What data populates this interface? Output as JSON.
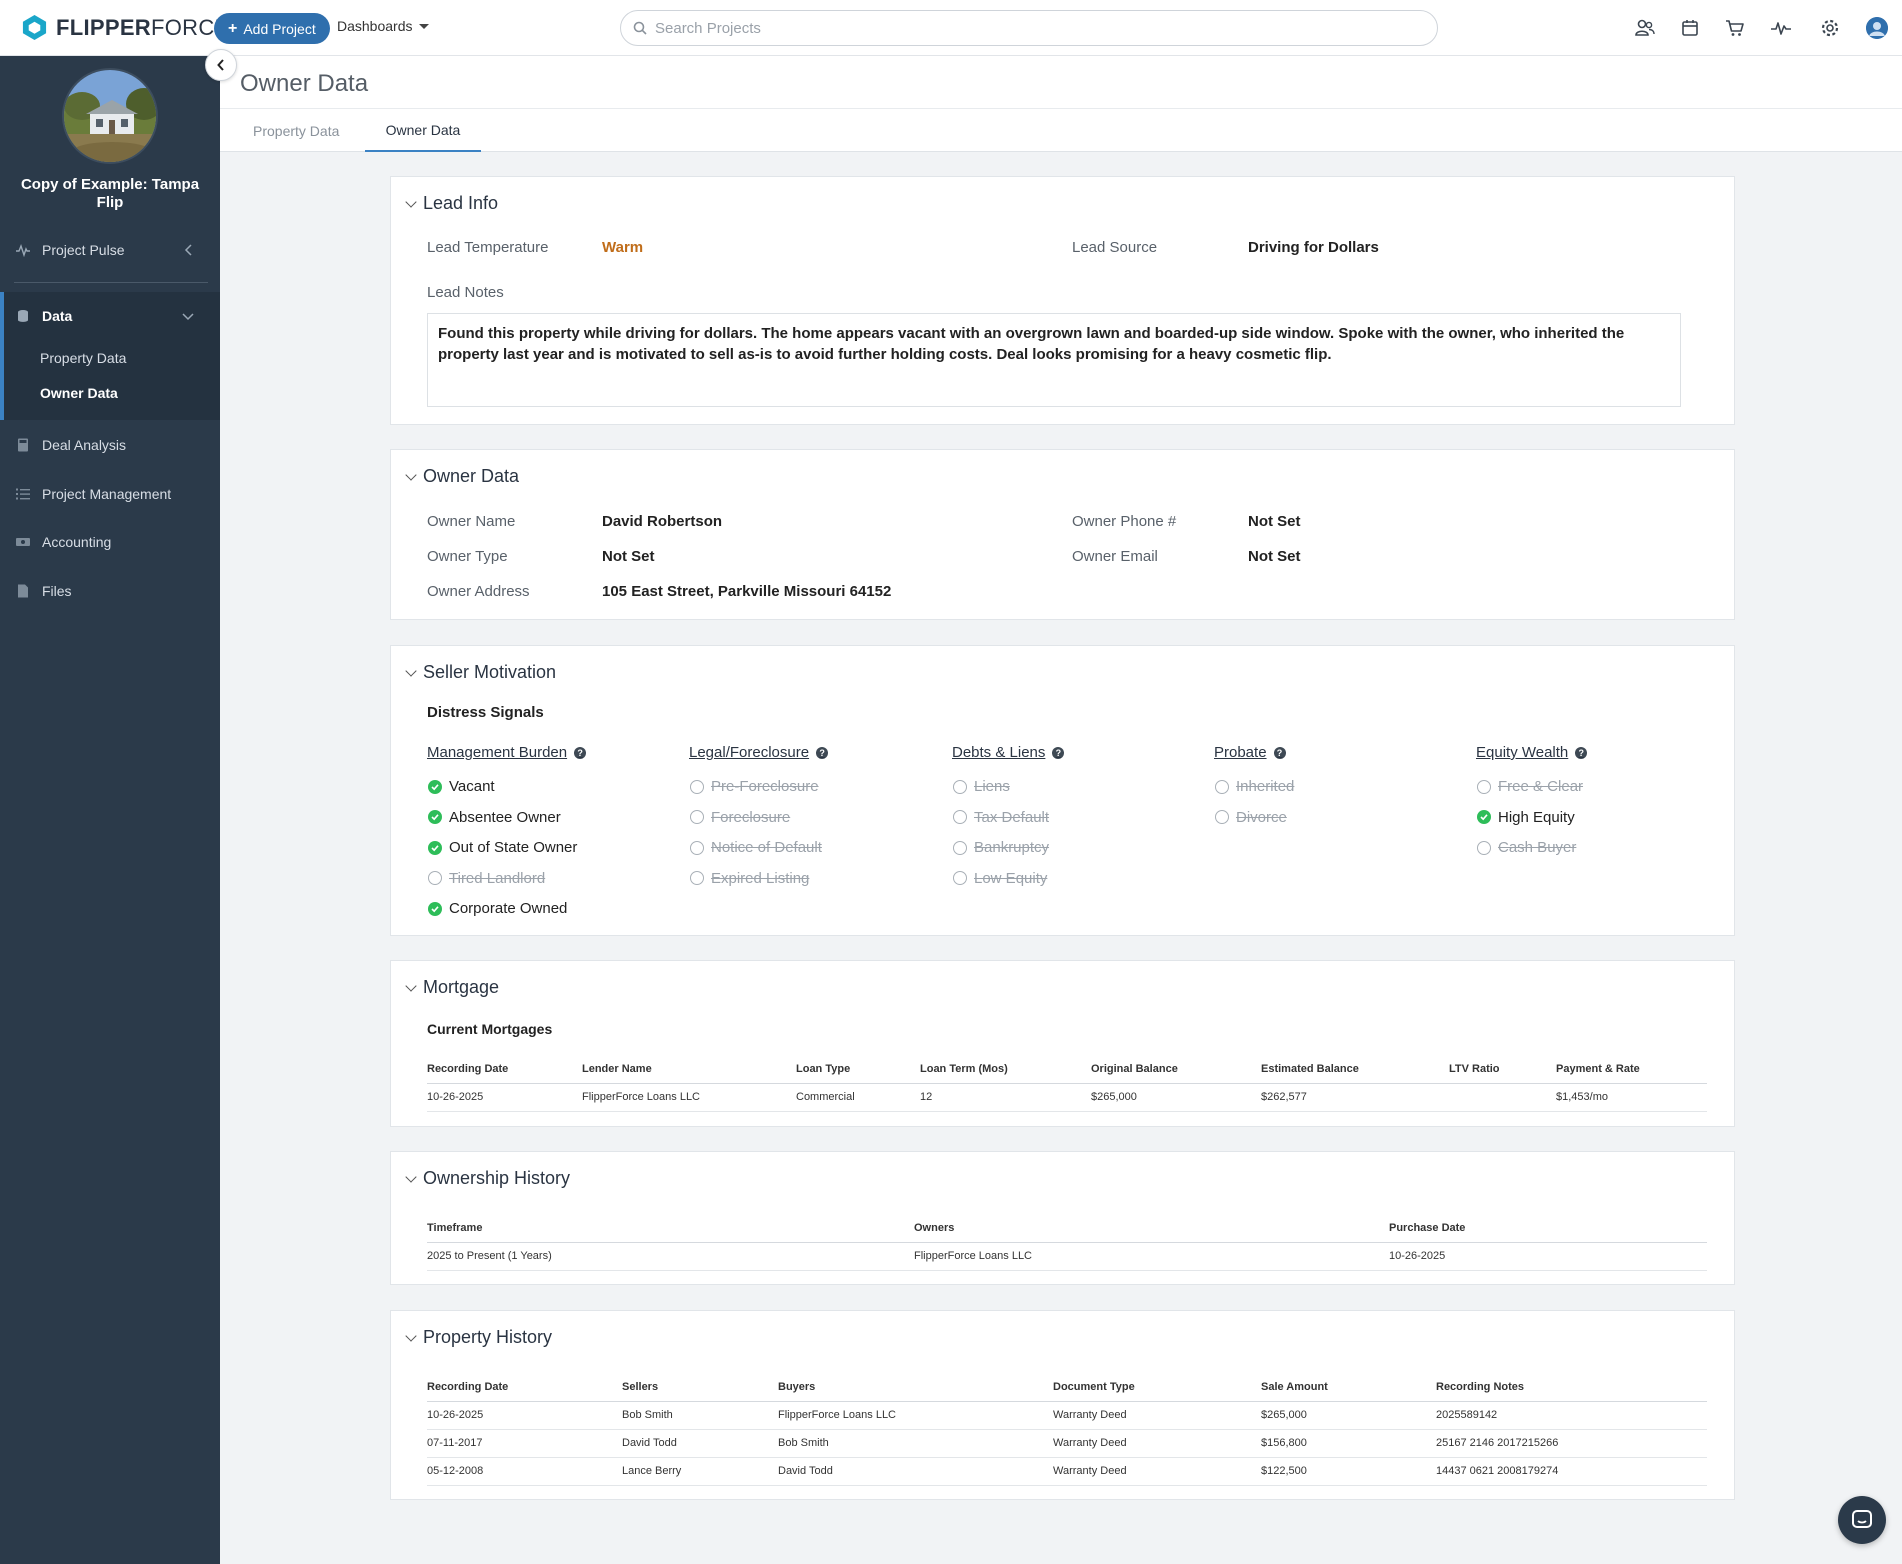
{
  "brand": {
    "name_bold": "FLIPPER",
    "name_light": "FORCE",
    "accent": "#2f6fad",
    "sidebar_bg": "#2b3a4a"
  },
  "topbar": {
    "add_project_label": "Add Project",
    "dashboards_label": "Dashboards",
    "search_placeholder": "Search Projects",
    "icons": [
      "users-icon",
      "calendar-icon",
      "cart-icon",
      "pulse-icon",
      "gear-icon",
      "avatar-icon"
    ]
  },
  "sidebar": {
    "project_title": "Copy of Example: Tampa Flip",
    "project_pulse": "Project Pulse",
    "data": "Data",
    "property_data": "Property Data",
    "owner_data": "Owner Data",
    "deal_analysis": "Deal Analysis",
    "project_management": "Project Management",
    "accounting": "Accounting",
    "files": "Files"
  },
  "page": {
    "title": "Owner Data",
    "tabs": [
      "Property Data",
      "Owner Data"
    ],
    "active_tab": "Owner Data"
  },
  "lead_info": {
    "title": "Lead Info",
    "temperature_label": "Lead Temperature",
    "temperature_value": "Warm",
    "temperature_color": "#c06d1a",
    "source_label": "Lead Source",
    "source_value": "Driving for Dollars",
    "notes_label": "Lead Notes",
    "notes_value": "Found this property while driving for dollars. The home appears vacant with an overgrown lawn and boarded-up side window. Spoke with the owner, who inherited the property last year and is motivated to sell as-is to avoid further holding costs. Deal looks promising for a heavy cosmetic flip."
  },
  "owner_data": {
    "title": "Owner Data",
    "name_label": "Owner Name",
    "name_value": "David Robertson",
    "type_label": "Owner Type",
    "type_value": "Not Set",
    "address_label": "Owner Address",
    "address_value": "105 East Street, Parkville Missouri 64152",
    "phone_label": "Owner Phone #",
    "phone_value": "Not Set",
    "email_label": "Owner Email",
    "email_value": "Not Set"
  },
  "seller_motivation": {
    "title": "Seller Motivation",
    "subtitle": "Distress Signals",
    "groups": [
      {
        "name": "Management Burden",
        "items": [
          {
            "label": "Vacant",
            "on": true
          },
          {
            "label": "Absentee Owner",
            "on": true
          },
          {
            "label": "Out of State Owner",
            "on": true
          },
          {
            "label": "Tired Landlord",
            "on": false
          },
          {
            "label": "Corporate Owned",
            "on": true
          }
        ]
      },
      {
        "name": "Legal/Foreclosure",
        "items": [
          {
            "label": "Pre-Foreclosure",
            "on": false
          },
          {
            "label": "Foreclosure",
            "on": false
          },
          {
            "label": "Notice of Default",
            "on": false
          },
          {
            "label": "Expired Listing",
            "on": false
          }
        ]
      },
      {
        "name": "Debts & Liens",
        "items": [
          {
            "label": "Liens",
            "on": false
          },
          {
            "label": "Tax Default",
            "on": false
          },
          {
            "label": "Bankruptcy",
            "on": false
          },
          {
            "label": "Low Equity",
            "on": false
          }
        ]
      },
      {
        "name": "Probate",
        "items": [
          {
            "label": "Inherited",
            "on": false
          },
          {
            "label": "Divorce",
            "on": false
          }
        ]
      },
      {
        "name": "Equity Wealth",
        "items": [
          {
            "label": "Free & Clear",
            "on": false
          },
          {
            "label": "High Equity",
            "on": true
          },
          {
            "label": "Cash Buyer",
            "on": false
          }
        ]
      }
    ]
  },
  "mortgage": {
    "title": "Mortgage",
    "subtitle": "Current Mortgages",
    "columns": [
      "Recording Date",
      "Lender Name",
      "Loan Type",
      "Loan Term (Mos)",
      "Original Balance",
      "Estimated Balance",
      "LTV Ratio",
      "Payment & Rate"
    ],
    "rows": [
      [
        "10-26-2025",
        "FlipperForce Loans LLC",
        "Commercial",
        "12",
        "$265,000",
        "$262,577",
        "",
        "$1,453/mo"
      ]
    ]
  },
  "ownership_history": {
    "title": "Ownership History",
    "columns": [
      "Timeframe",
      "Owners",
      "Purchase Date"
    ],
    "rows": [
      [
        "2025 to Present (1 Years)",
        "FlipperForce Loans LLC",
        "10-26-2025"
      ]
    ]
  },
  "property_history": {
    "title": "Property History",
    "columns": [
      "Recording Date",
      "Sellers",
      "Buyers",
      "Document Type",
      "Sale Amount",
      "Recording Notes"
    ],
    "rows": [
      [
        "10-26-2025",
        "Bob Smith",
        "FlipperForce Loans LLC",
        "Warranty Deed",
        "$265,000",
        "2025589142"
      ],
      [
        "07-11-2017",
        "David Todd",
        "Bob Smith",
        "Warranty Deed",
        "$156,800",
        "25167 2146 2017215266"
      ],
      [
        "05-12-2008",
        "Lance Berry",
        "David Todd",
        "Warranty Deed",
        "$122,500",
        "14437 0621 2008179274"
      ]
    ]
  }
}
